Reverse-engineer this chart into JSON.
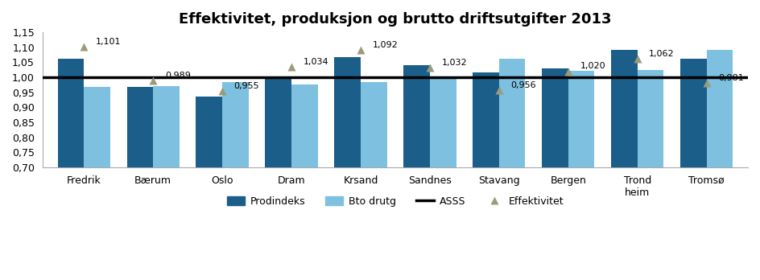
{
  "title": "Effektivitet, produksjon og brutto driftsutgifter 2013",
  "categories": [
    "Fredrik",
    "Bærum",
    "Oslo",
    "Dram",
    "Krsand",
    "Sandnes",
    "Stavang",
    "Bergen",
    "Trond\nheim",
    "Tromsø"
  ],
  "prodindeks": [
    1.063,
    0.968,
    0.937,
    1.003,
    1.068,
    1.04,
    1.017,
    1.03,
    1.092,
    1.063
  ],
  "bto_drutg": [
    0.967,
    0.97,
    0.983,
    0.975,
    0.983,
    1.0,
    1.063,
    1.022,
    1.023,
    1.09
  ],
  "effektivitet": [
    1.101,
    0.989,
    0.955,
    1.034,
    1.092,
    1.032,
    0.956,
    1.02,
    1.062,
    0.981
  ],
  "asss_line": 1.0,
  "ylim": [
    0.7,
    1.15
  ],
  "yticks": [
    0.7,
    0.75,
    0.8,
    0.85,
    0.9,
    0.95,
    1.0,
    1.05,
    1.1,
    1.15
  ],
  "bar_color_dark": "#1B5E8A",
  "bar_color_light": "#7DC0E0",
  "triangle_color": "#9B9B7A",
  "asss_color": "#000000",
  "legend_labels": [
    "Prodindeks",
    "Bto drutg",
    "ASSS",
    "Effektivitet"
  ],
  "bar_width": 0.38,
  "fig_bg": "#FFFFFF",
  "axes_bg": "#FFFFFF"
}
